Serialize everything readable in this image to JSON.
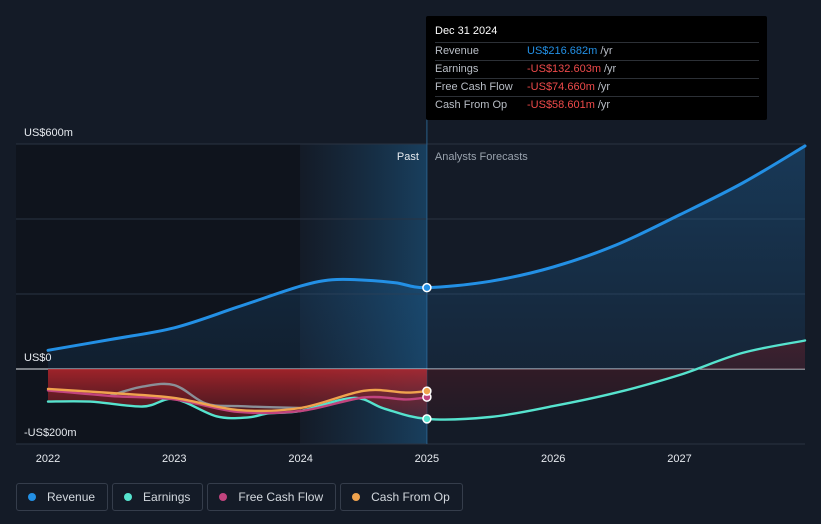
{
  "chart_data": {
    "type": "line",
    "x_ticks": [
      "2022",
      "2023",
      "2024",
      "2025",
      "2026",
      "2027"
    ],
    "y_ticks": [
      "US$600m",
      "US$0",
      "-US$200m"
    ],
    "ylim": [
      -200,
      600
    ],
    "divider_date": "2025-01-01",
    "region_labels": {
      "past": "Past",
      "forecast": "Analysts Forecasts"
    },
    "series": [
      {
        "name": "Revenue",
        "color": "#2390e5",
        "points": [
          [
            "2022-01",
            50
          ],
          [
            "2022-07",
            79
          ],
          [
            "2023-01",
            110
          ],
          [
            "2023-07",
            165
          ],
          [
            "2024-01",
            221
          ],
          [
            "2024-04",
            238
          ],
          [
            "2024-07",
            237
          ],
          [
            "2024-10",
            230
          ],
          [
            "2025-01",
            217
          ],
          [
            "2025-07",
            234
          ],
          [
            "2026-01",
            272
          ],
          [
            "2026-07",
            331
          ],
          [
            "2027-01",
            411
          ],
          [
            "2027-07",
            496
          ],
          [
            "2028-01",
            595
          ]
        ]
      },
      {
        "name": "Earnings",
        "color": "#56e3ce",
        "points": [
          [
            "2022-01",
            -87
          ],
          [
            "2022-05",
            -87
          ],
          [
            "2022-10",
            -100
          ],
          [
            "2023-01",
            -80
          ],
          [
            "2023-05",
            -126
          ],
          [
            "2023-08",
            -129
          ],
          [
            "2023-10",
            -118
          ],
          [
            "2024-01",
            -112
          ],
          [
            "2024-06",
            -77
          ],
          [
            "2024-09",
            -106
          ],
          [
            "2025-01",
            -133
          ],
          [
            "2025-07",
            -128
          ],
          [
            "2026-01",
            -99
          ],
          [
            "2026-07",
            -63
          ],
          [
            "2027-01",
            -16
          ],
          [
            "2027-07",
            43
          ],
          [
            "2028-01",
            76
          ]
        ]
      },
      {
        "name": "Free Cash Flow",
        "color": "#c1447e",
        "points": [
          [
            "2022-01",
            -57
          ],
          [
            "2022-07",
            -72
          ],
          [
            "2023-01",
            -81
          ],
          [
            "2023-07",
            -114
          ],
          [
            "2024-01",
            -112
          ],
          [
            "2024-07",
            -76
          ],
          [
            "2024-11",
            -81
          ],
          [
            "2025-01",
            -75
          ]
        ]
      },
      {
        "name": "Cash From Op",
        "color": "#f0a34e",
        "points": [
          [
            "2022-01",
            -53
          ],
          [
            "2022-07",
            -64
          ],
          [
            "2023-01",
            -77
          ],
          [
            "2023-07",
            -109
          ],
          [
            "2024-01",
            -104
          ],
          [
            "2024-07",
            -58
          ],
          [
            "2024-11",
            -63
          ],
          [
            "2025-01",
            -59
          ]
        ]
      },
      {
        "name": "",
        "color": "#8a8f97",
        "points": [
          [
            "2022-07",
            -70
          ],
          [
            "2022-10",
            -47
          ],
          [
            "2023-01",
            -43
          ],
          [
            "2023-04",
            -92
          ],
          [
            "2023-07",
            -99
          ],
          [
            "2024-01",
            -104
          ]
        ]
      }
    ]
  },
  "tooltip": {
    "date": "Dec 31 2024",
    "rows": [
      {
        "label": "Revenue",
        "value": "US$216.682m",
        "unit": "/yr",
        "color": "#2390e5"
      },
      {
        "label": "Earnings",
        "value": "-US$132.603m",
        "unit": "/yr",
        "color": "#ee4a4a"
      },
      {
        "label": "Free Cash Flow",
        "value": "-US$74.660m",
        "unit": "/yr",
        "color": "#ee4a4a"
      },
      {
        "label": "Cash From Op",
        "value": "-US$58.601m",
        "unit": "/yr",
        "color": "#ee4a4a"
      }
    ]
  },
  "legend": [
    {
      "label": "Revenue",
      "color": "#2390e5"
    },
    {
      "label": "Earnings",
      "color": "#56e3ce"
    },
    {
      "label": "Free Cash Flow",
      "color": "#c1447e"
    },
    {
      "label": "Cash From Op",
      "color": "#f0a34e"
    }
  ]
}
